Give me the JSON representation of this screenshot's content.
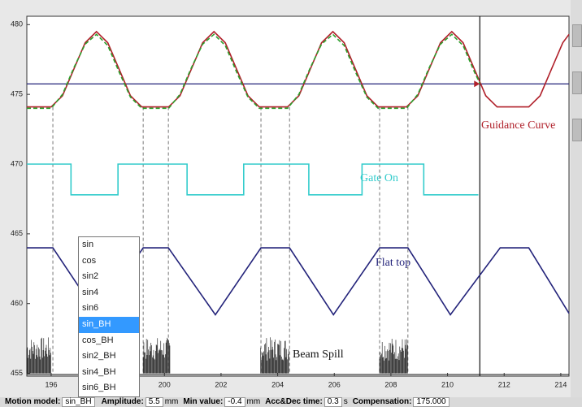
{
  "chart_data": {
    "type": "line",
    "xlim": [
      195.14,
      214.29
    ],
    "ylim": [
      454.8,
      480.6
    ],
    "xticks": [
      196,
      198,
      200,
      202,
      204,
      206,
      208,
      210,
      212,
      214
    ],
    "yticks": [
      455,
      460,
      465,
      470,
      475,
      480
    ],
    "series": [
      {
        "name": "Guidance Curve",
        "color": "#b0202a",
        "x": [
          195.14,
          196.0,
          196.4,
          196.8,
          197.2,
          197.6,
          198.0,
          198.4,
          198.8,
          199.2,
          200.15,
          200.55,
          200.95,
          201.35,
          201.75,
          202.15,
          202.55,
          202.95,
          203.35,
          204.35,
          204.75,
          205.15,
          205.55,
          205.95,
          206.35,
          206.75,
          207.15,
          207.55,
          208.55,
          208.95,
          209.35,
          209.75,
          210.15,
          210.55,
          210.95,
          211.35,
          211.75,
          212.87,
          213.27,
          213.67,
          214.07,
          214.29
        ],
        "values": [
          474.1,
          474.1,
          474.9,
          476.8,
          478.7,
          479.5,
          478.7,
          476.8,
          474.9,
          474.1,
          474.1,
          474.9,
          476.8,
          478.7,
          479.5,
          478.7,
          476.8,
          474.9,
          474.1,
          474.1,
          474.9,
          476.8,
          478.7,
          479.5,
          478.7,
          476.8,
          474.9,
          474.1,
          474.1,
          474.9,
          476.8,
          478.7,
          479.5,
          478.7,
          476.8,
          474.9,
          474.1,
          474.1,
          474.9,
          476.8,
          478.7,
          479.3
        ]
      },
      {
        "color": "#2ca02c",
        "dashed": true,
        "x": [
          195.14,
          196.0,
          196.4,
          196.8,
          197.2,
          197.6,
          198.0,
          198.4,
          198.8,
          199.2,
          200.15,
          200.55,
          200.95,
          201.35,
          201.75,
          202.15,
          202.55,
          202.95,
          203.35,
          204.35,
          204.75,
          205.15,
          205.55,
          205.95,
          206.35,
          206.75,
          207.15,
          207.55,
          208.55,
          208.95,
          209.35,
          209.75,
          210.15,
          210.55,
          210.95,
          211.14
        ],
        "values": [
          474.0,
          474.0,
          475.0,
          476.9,
          478.6,
          479.3,
          478.5,
          476.6,
          474.8,
          474.0,
          474.0,
          475.0,
          476.9,
          478.6,
          479.3,
          478.5,
          476.6,
          474.8,
          474.0,
          474.0,
          475.0,
          476.9,
          478.6,
          479.3,
          478.5,
          476.6,
          474.8,
          474.0,
          474.0,
          475.0,
          476.9,
          478.6,
          479.3,
          478.5,
          476.6,
          475.8
        ]
      },
      {
        "name": "Gate On",
        "color": "#33cccc",
        "x": [
          195.14,
          196.7,
          196.7,
          198.36,
          198.36,
          200.8,
          200.8,
          202.8,
          202.8,
          205.1,
          205.1,
          206.98,
          206.98,
          209.16,
          209.16,
          211.09
        ],
        "values": [
          470,
          470,
          467.8,
          467.8,
          470,
          470,
          467.8,
          467.8,
          470,
          470,
          467.8,
          467.8,
          470,
          470,
          467.8,
          467.8
        ]
      },
      {
        "name": "Flat top",
        "color": "#23237a",
        "x": [
          195.14,
          196.06,
          197.64,
          199.25,
          200.14,
          201.8,
          203.41,
          204.42,
          205.97,
          207.6,
          208.6,
          210.1,
          211.86,
          212.87,
          214.29
        ],
        "values": [
          464,
          464,
          459.2,
          464,
          464,
          459.2,
          464,
          464,
          459.2,
          464,
          464,
          459.2,
          464,
          464,
          459.3
        ]
      }
    ],
    "hline": {
      "value": 475.75,
      "color": "#23237a"
    },
    "vline": {
      "value": 211.14,
      "color": "#111111"
    },
    "markers": {
      "x": [
        196.06,
        199.25,
        200.14,
        203.41,
        204.42,
        207.6,
        208.6
      ],
      "top": 474.1,
      "bottom": 455
    },
    "spill": {
      "name": "Beam Spill",
      "intervals": [
        [
          195.14,
          196.0
        ],
        [
          199.25,
          200.2
        ],
        [
          203.4,
          204.4
        ],
        [
          207.6,
          208.6
        ]
      ],
      "top": 457.6,
      "base": 455
    }
  },
  "dropdown": {
    "items": [
      "sin",
      "cos",
      "sin2",
      "sin4",
      "sin6",
      "sin_BH",
      "cos_BH",
      "sin2_BH",
      "sin4_BH",
      "sin6_BH"
    ],
    "selected": 5
  },
  "controls": [
    {
      "label": "Motion model:",
      "value": "sin_BH"
    },
    {
      "label": "Amplitude:",
      "value": "5.5",
      "unit": "mm"
    },
    {
      "label": "Min value:",
      "value": "-0.4",
      "unit": "mm"
    },
    {
      "label": "Acc&Dec time:",
      "value": "0.3",
      "unit": "s"
    },
    {
      "label": "Compensation:",
      "value": "175.000"
    }
  ]
}
